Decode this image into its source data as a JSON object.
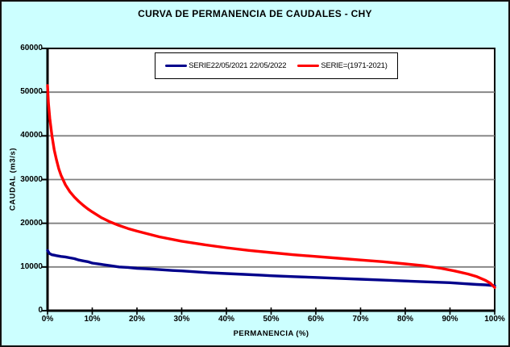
{
  "window": {
    "title": "CURVA DE PERMANENCIA DE CAUDALES - CHY"
  },
  "colors": {
    "frame_background": "#CCFFFF",
    "plot_background": "#FFFFFF",
    "gridline": "#808080",
    "axis": "#000000",
    "series_blue": "#00008B",
    "series_red": "#FF0000"
  },
  "chart_data": {
    "type": "line",
    "title": "CURVA DE PERMANENCIA DE CAUDALES - CHY",
    "xlabel": "PERMANENCIA (%)",
    "ylabel": "CAUDAL (m3/s)",
    "xlim": [
      0,
      100
    ],
    "ylim": [
      0,
      60000
    ],
    "grid": "horizontal-only",
    "legend_position": "top-center-inside",
    "x_tick_labels": [
      "0%",
      "10%",
      "20%",
      "30%",
      "40%",
      "50%",
      "60%",
      "70%",
      "80%",
      "90%",
      "100%"
    ],
    "y_tick_values": [
      0,
      10000,
      20000,
      30000,
      40000,
      50000,
      60000
    ],
    "y_tick_labels": [
      "0",
      "10000",
      "20000",
      "30000",
      "40000",
      "50000",
      "60000"
    ],
    "series": [
      {
        "name": "SERIE22/05/2021 22/05/2022",
        "color": "#00008B",
        "x": [
          0,
          0.4,
          1,
          1.5,
          2,
          3,
          4,
          5,
          6,
          7,
          8,
          9,
          10,
          12,
          14,
          16,
          18,
          20,
          22,
          25,
          28,
          30,
          33,
          36,
          40,
          44,
          48,
          50,
          55,
          60,
          65,
          70,
          75,
          80,
          85,
          90,
          93,
          96,
          98,
          100
        ],
        "y": [
          13800,
          13100,
          12800,
          12700,
          12600,
          12400,
          12300,
          12100,
          11900,
          11600,
          11400,
          11200,
          10900,
          10600,
          10300,
          10000,
          9900,
          9700,
          9600,
          9400,
          9200,
          9100,
          8900,
          8700,
          8500,
          8300,
          8100,
          8000,
          7800,
          7600,
          7400,
          7200,
          7000,
          6800,
          6600,
          6400,
          6200,
          6000,
          5900,
          5700
        ]
      },
      {
        "name": "SERIE=(1971-2021)",
        "color": "#FF0000",
        "x": [
          0,
          0.2,
          0.5,
          1,
          1.5,
          2,
          2.5,
          3,
          4,
          5,
          6,
          7,
          8,
          9,
          10,
          12,
          14,
          16,
          18,
          20,
          25,
          30,
          35,
          40,
          45,
          50,
          55,
          60,
          65,
          70,
          75,
          80,
          84,
          88,
          91,
          94,
          96,
          98,
          99,
          100
        ],
        "y": [
          51500,
          47500,
          44000,
          40000,
          36800,
          34500,
          32500,
          31000,
          28800,
          27200,
          26000,
          25000,
          24100,
          23300,
          22600,
          21300,
          20300,
          19500,
          18800,
          18200,
          16900,
          15900,
          15100,
          14400,
          13800,
          13300,
          12800,
          12400,
          12000,
          11600,
          11200,
          10700,
          10300,
          9700,
          9100,
          8400,
          7800,
          6900,
          6300,
          5300
        ]
      }
    ]
  }
}
